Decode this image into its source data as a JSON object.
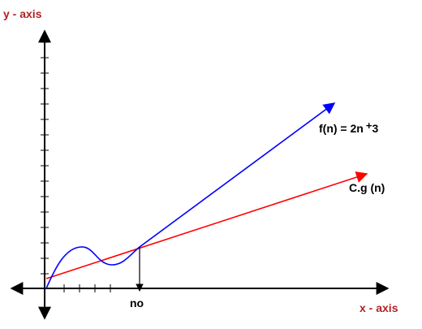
{
  "labels": {
    "y_axis": "y - axis",
    "x_axis": "x - axis",
    "f_label": "f(n) = 2n",
    "f_plus": "+",
    "f_const": "3",
    "g_label": "C.g (n)",
    "n0_label": "no"
  },
  "colors": {
    "axis": "#000000",
    "axis_label": "#b22222",
    "f_curve": "#0000ff",
    "g_line": "#ff0000"
  }
}
